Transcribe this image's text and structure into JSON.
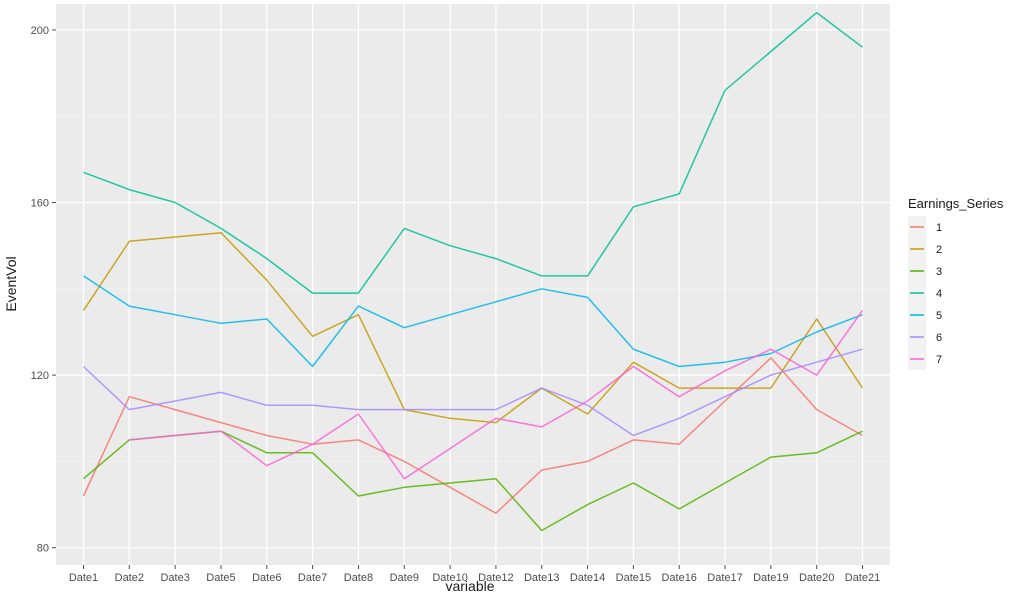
{
  "chart_data": {
    "type": "line",
    "xlabel": "variable",
    "ylabel": "EventVol",
    "categories": [
      "Date1",
      "Date2",
      "Date3",
      "Date5",
      "Date6",
      "Date7",
      "Date8",
      "Date9",
      "Date10",
      "Date12",
      "Date13",
      "Date14",
      "Date15",
      "Date16",
      "Date17",
      "Date19",
      "Date20",
      "Date21"
    ],
    "ylim": [
      76,
      206
    ],
    "yticks": [
      80,
      120,
      160,
      200
    ],
    "ytick_labels": [
      "80",
      "120",
      "160",
      "200"
    ],
    "grid": true,
    "legend": {
      "title": "Earnings_Series",
      "position": "right"
    },
    "series": [
      {
        "name": "1",
        "color": "#F8766D",
        "values": [
          92,
          115,
          112,
          109,
          106,
          104,
          105,
          100,
          94,
          88,
          98,
          100,
          105,
          104,
          114,
          124,
          112,
          106
        ]
      },
      {
        "name": "2",
        "color": "#C49A00",
        "values": [
          135,
          151,
          152,
          153,
          142,
          129,
          134,
          112,
          110,
          109,
          117,
          111,
          123,
          117,
          117,
          117,
          133,
          117
        ]
      },
      {
        "name": "3",
        "color": "#53B400",
        "values": [
          96,
          105,
          106,
          107,
          102,
          102,
          92,
          94,
          95,
          96,
          84,
          90,
          95,
          89,
          95,
          101,
          102,
          107
        ]
      },
      {
        "name": "4",
        "color": "#00C094",
        "values": [
          167,
          163,
          160,
          154,
          147,
          139,
          139,
          154,
          150,
          147,
          143,
          143,
          159,
          162,
          186,
          195,
          204,
          196
        ]
      },
      {
        "name": "5",
        "color": "#00B6EB",
        "values": [
          143,
          136,
          134,
          132,
          133,
          122,
          136,
          131,
          134,
          137,
          140,
          138,
          126,
          122,
          123,
          125,
          130,
          134
        ]
      },
      {
        "name": "6",
        "color": "#A58AFF",
        "values": [
          122,
          112,
          114,
          116,
          113,
          113,
          112,
          112,
          112,
          112,
          117,
          113,
          106,
          110,
          115,
          120,
          123,
          126
        ]
      },
      {
        "name": "7",
        "color": "#FB61D7",
        "values": [
          null,
          105,
          106,
          107,
          99,
          104,
          111,
          96,
          103,
          110,
          108,
          114,
          122,
          115,
          121,
          126,
          120,
          135
        ]
      }
    ]
  }
}
